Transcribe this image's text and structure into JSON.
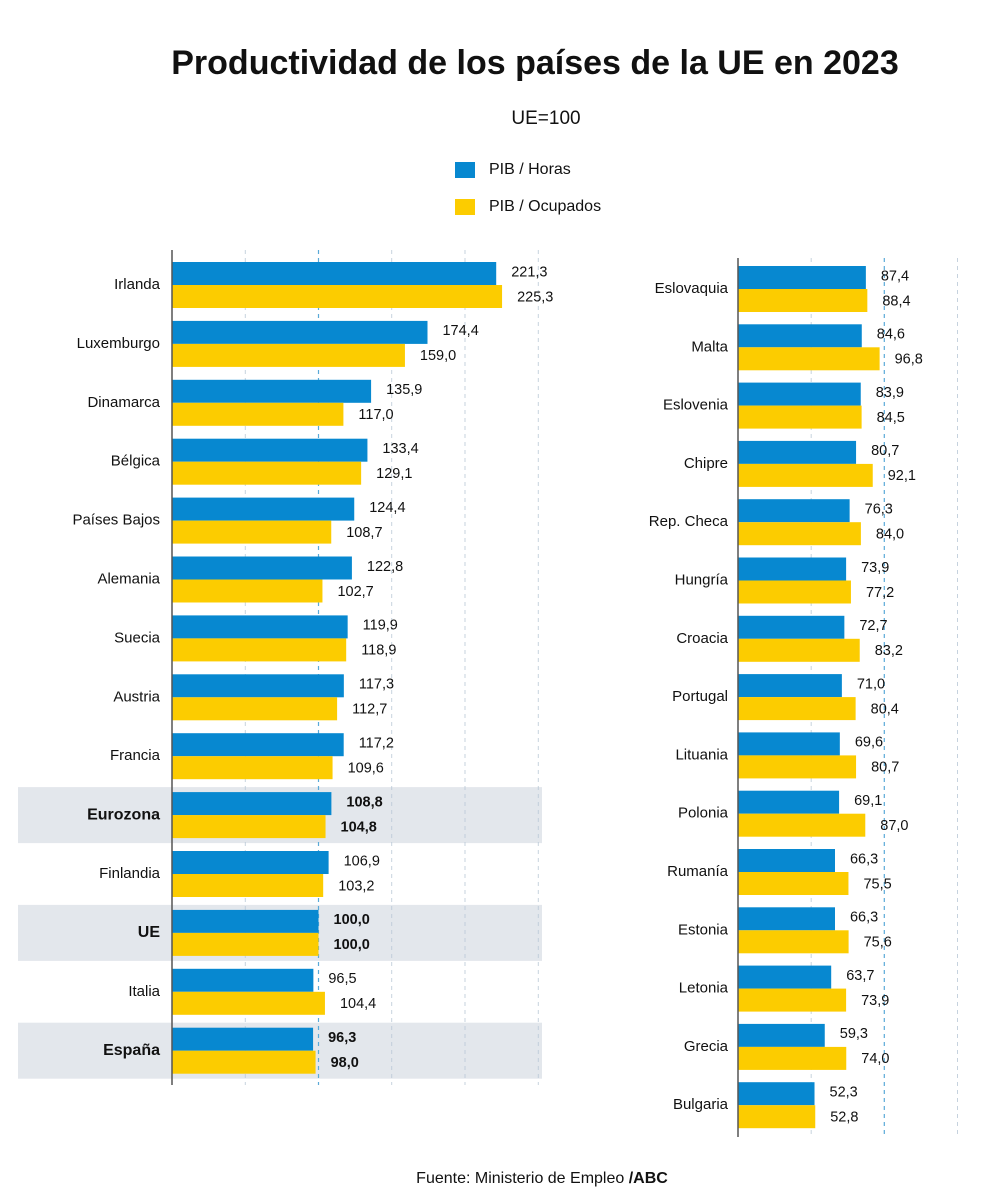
{
  "title": "Productividad de los países de la UE en 2023",
  "subtitle": "UE=100",
  "legend": [
    {
      "label": "PIB / Horas",
      "color": "#0788d0"
    },
    {
      "label": "PIB / Ocupados",
      "color": "#fccc00"
    }
  ],
  "source": {
    "text": "Fuente: Ministerio de Empleo ",
    "brand": "/ABC"
  },
  "colors": {
    "horas": "#0788d0",
    "ocupados": "#fccc00",
    "highlight_band": "#e3e7ec",
    "reference_line": "#5aaad8"
  },
  "chart_data": [
    {
      "type": "bar",
      "orientation": "horizontal",
      "title": "",
      "series": [
        {
          "name": "PIB / Horas"
        },
        {
          "name": "PIB / Ocupados"
        }
      ],
      "xlim": [
        0,
        250
      ],
      "reference_value": 100,
      "grid": true,
      "categories": [
        {
          "label": "Irlanda",
          "horas": 221.3,
          "ocupados": 225.3,
          "horas_text": "221,3",
          "ocupados_text": "225,3",
          "highlight": false
        },
        {
          "label": "Luxemburgo",
          "horas": 174.4,
          "ocupados": 159.0,
          "horas_text": "174,4",
          "ocupados_text": "159,0",
          "highlight": false
        },
        {
          "label": "Dinamarca",
          "horas": 135.9,
          "ocupados": 117.0,
          "horas_text": "135,9",
          "ocupados_text": "117,0",
          "highlight": false
        },
        {
          "label": "Bélgica",
          "horas": 133.4,
          "ocupados": 129.1,
          "horas_text": "133,4",
          "ocupados_text": "129,1",
          "highlight": false
        },
        {
          "label": "Países Bajos",
          "horas": 124.4,
          "ocupados": 108.7,
          "horas_text": "124,4",
          "ocupados_text": "108,7",
          "highlight": false
        },
        {
          "label": "Alemania",
          "horas": 122.8,
          "ocupados": 102.7,
          "horas_text": "122,8",
          "ocupados_text": "102,7",
          "highlight": false
        },
        {
          "label": "Suecia",
          "horas": 119.9,
          "ocupados": 118.9,
          "horas_text": "119,9",
          "ocupados_text": "118,9",
          "highlight": false
        },
        {
          "label": "Austria",
          "horas": 117.3,
          "ocupados": 112.7,
          "horas_text": "117,3",
          "ocupados_text": "112,7",
          "highlight": false
        },
        {
          "label": "Francia",
          "horas": 117.2,
          "ocupados": 109.6,
          "horas_text": "117,2",
          "ocupados_text": "109,6",
          "highlight": false
        },
        {
          "label": "Eurozona",
          "horas": 108.8,
          "ocupados": 104.8,
          "horas_text": "108,8",
          "ocupados_text": "104,8",
          "highlight": true
        },
        {
          "label": "Finlandia",
          "horas": 106.9,
          "ocupados": 103.2,
          "horas_text": "106,9",
          "ocupados_text": "103,2",
          "highlight": false
        },
        {
          "label": "UE",
          "horas": 100.0,
          "ocupados": 100.0,
          "horas_text": "100,0",
          "ocupados_text": "100,0",
          "highlight": true
        },
        {
          "label": "Italia",
          "horas": 96.5,
          "ocupados": 104.4,
          "horas_text": "96,5",
          "ocupados_text": "104,4",
          "highlight": false
        },
        {
          "label": "España",
          "horas": 96.3,
          "ocupados": 98.0,
          "horas_text": "96,3",
          "ocupados_text": "98,0",
          "highlight": true
        }
      ]
    },
    {
      "type": "bar",
      "orientation": "horizontal",
      "title": "",
      "series": [
        {
          "name": "PIB / Horas"
        },
        {
          "name": "PIB / Ocupados"
        }
      ],
      "xlim": [
        0,
        150
      ],
      "reference_value": 100,
      "grid": true,
      "categories": [
        {
          "label": "Eslovaquia",
          "horas": 87.4,
          "ocupados": 88.4,
          "horas_text": "87,4",
          "ocupados_text": "88,4",
          "highlight": false
        },
        {
          "label": "Malta",
          "horas": 84.6,
          "ocupados": 96.8,
          "horas_text": "84,6",
          "ocupados_text": "96,8",
          "highlight": false
        },
        {
          "label": "Eslovenia",
          "horas": 83.9,
          "ocupados": 84.5,
          "horas_text": "83,9",
          "ocupados_text": "84,5",
          "highlight": false
        },
        {
          "label": "Chipre",
          "horas": 80.7,
          "ocupados": 92.1,
          "horas_text": "80,7",
          "ocupados_text": "92,1",
          "highlight": false
        },
        {
          "label": "Rep. Checa",
          "horas": 76.3,
          "ocupados": 84.0,
          "horas_text": "76,3",
          "ocupados_text": "84,0",
          "highlight": false
        },
        {
          "label": "Hungría",
          "horas": 73.9,
          "ocupados": 77.2,
          "horas_text": "73,9",
          "ocupados_text": "77,2",
          "highlight": false
        },
        {
          "label": "Croacia",
          "horas": 72.7,
          "ocupados": 83.2,
          "horas_text": "72,7",
          "ocupados_text": "83,2",
          "highlight": false
        },
        {
          "label": "Portugal",
          "horas": 71.0,
          "ocupados": 80.4,
          "horas_text": "71,0",
          "ocupados_text": "80,4",
          "highlight": false
        },
        {
          "label": "Lituania",
          "horas": 69.6,
          "ocupados": 80.7,
          "horas_text": "69,6",
          "ocupados_text": "80,7",
          "highlight": false
        },
        {
          "label": "Polonia",
          "horas": 69.1,
          "ocupados": 87.0,
          "horas_text": "69,1",
          "ocupados_text": "87,0",
          "highlight": false
        },
        {
          "label": "Rumanía",
          "horas": 66.3,
          "ocupados": 75.5,
          "horas_text": "66,3",
          "ocupados_text": "75,5",
          "highlight": false
        },
        {
          "label": "Estonia",
          "horas": 66.3,
          "ocupados": 75.6,
          "horas_text": "66,3",
          "ocupados_text": "75,6",
          "highlight": false
        },
        {
          "label": "Letonia",
          "horas": 63.7,
          "ocupados": 73.9,
          "horas_text": "63,7",
          "ocupados_text": "73,9",
          "highlight": false
        },
        {
          "label": "Grecia",
          "horas": 59.3,
          "ocupados": 74.0,
          "horas_text": "59,3",
          "ocupados_text": "74,0",
          "highlight": false
        },
        {
          "label": "Bulgaria",
          "horas": 52.3,
          "ocupados": 52.8,
          "horas_text": "52,3",
          "ocupados_text": "52,8",
          "highlight": false
        }
      ]
    }
  ]
}
